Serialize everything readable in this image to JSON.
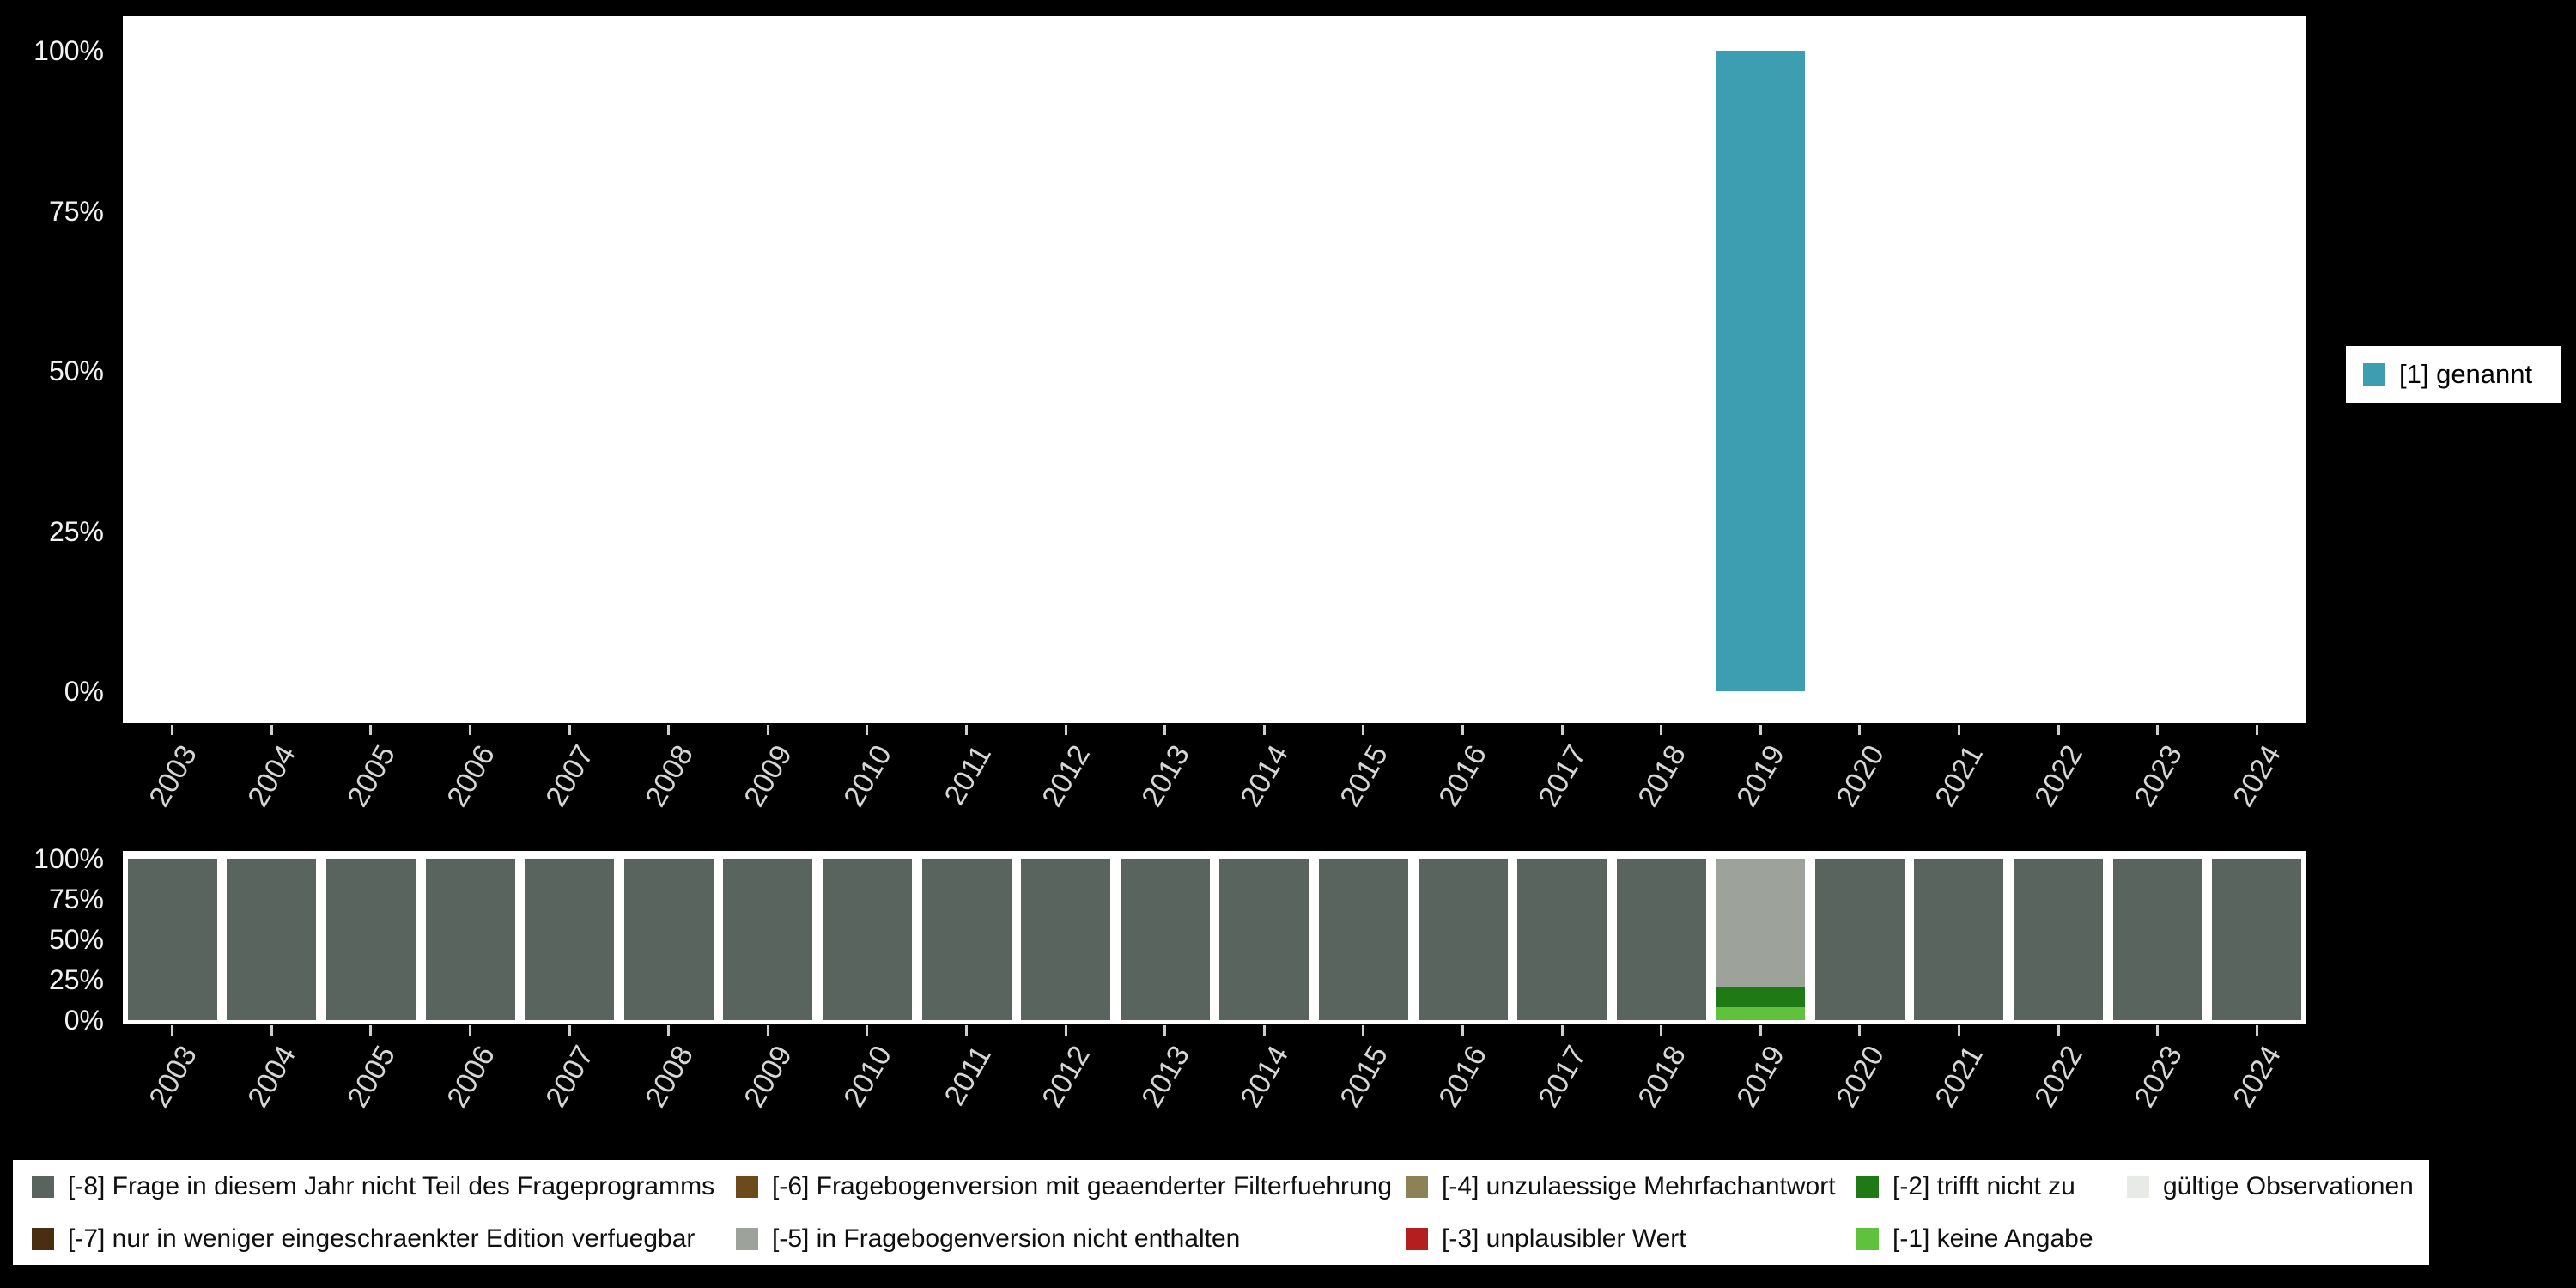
{
  "figure": {
    "background": "#000000"
  },
  "chart_data": [
    {
      "type": "bar",
      "title": "",
      "categories": [
        "2003",
        "2004",
        "2005",
        "2006",
        "2007",
        "2008",
        "2009",
        "2010",
        "2011",
        "2012",
        "2013",
        "2014",
        "2015",
        "2016",
        "2017",
        "2018",
        "2019",
        "2020",
        "2021",
        "2022",
        "2023",
        "2024"
      ],
      "yticks": [
        "0%",
        "25%",
        "50%",
        "75%",
        "100%"
      ],
      "ylim": [
        0,
        100
      ],
      "legend_position": "right-middle",
      "series": [
        {
          "name": "[1] genannt",
          "color": "#3D9EB2",
          "values": [
            0,
            0,
            0,
            0,
            0,
            0,
            0,
            0,
            0,
            0,
            0,
            0,
            0,
            0,
            0,
            0,
            100,
            0,
            0,
            0,
            0,
            0
          ]
        }
      ]
    },
    {
      "type": "bar",
      "stacked": true,
      "stack_order": "bottom-to-top",
      "categories": [
        "2003",
        "2004",
        "2005",
        "2006",
        "2007",
        "2008",
        "2009",
        "2010",
        "2011",
        "2012",
        "2013",
        "2014",
        "2015",
        "2016",
        "2017",
        "2018",
        "2019",
        "2020",
        "2021",
        "2022",
        "2023",
        "2024"
      ],
      "yticks": [
        "0%",
        "25%",
        "50%",
        "75%",
        "100%"
      ],
      "ylim": [
        0,
        100
      ],
      "series": [
        {
          "name": "[-1] keine Angabe",
          "color": "#5FC13C",
          "values": [
            0,
            0,
            0,
            0,
            0,
            0,
            0,
            0,
            0,
            0,
            0,
            0,
            0,
            0,
            0,
            0,
            8,
            0,
            0,
            0,
            0,
            0
          ]
        },
        {
          "name": "[-2] trifft nicht zu",
          "color": "#1F7A16",
          "values": [
            0,
            0,
            0,
            0,
            0,
            0,
            0,
            0,
            0,
            0,
            0,
            0,
            0,
            0,
            0,
            0,
            12,
            0,
            0,
            0,
            0,
            0
          ]
        },
        {
          "name": "[-5] in Fragebogenversion nicht enthalten",
          "color": "#9DA39A",
          "values": [
            0,
            0,
            0,
            0,
            0,
            0,
            0,
            0,
            0,
            0,
            0,
            0,
            0,
            0,
            0,
            0,
            80,
            0,
            0,
            0,
            0,
            0
          ]
        },
        {
          "name": "[-8] Frage in diesem Jahr nicht Teil des Frageprogramms",
          "color": "#5A645E",
          "values": [
            100,
            100,
            100,
            100,
            100,
            100,
            100,
            100,
            100,
            100,
            100,
            100,
            100,
            100,
            100,
            100,
            0,
            100,
            100,
            100,
            100,
            100
          ]
        }
      ]
    }
  ],
  "value_legend": {
    "label": "[1] genannt",
    "color": "#3D9EB2"
  },
  "missings_legend": {
    "items": [
      {
        "label": "[-8] Frage in diesem Jahr nicht Teil des Frageprogramms",
        "color": "#5A645E"
      },
      {
        "label": "[-7] nur in weniger eingeschraenkter Edition verfuegbar",
        "color": "#4A2E12"
      },
      {
        "label": "[-6] Fragebogenversion mit geaenderter Filterfuehrung",
        "color": "#6B4A1B"
      },
      {
        "label": "[-5] in Fragebogenversion nicht enthalten",
        "color": "#9DA39A"
      },
      {
        "label": "[-4] unzulaessige Mehrfachantwort",
        "color": "#8C8255"
      },
      {
        "label": "[-3] unplausibler Wert",
        "color": "#B41E1E"
      },
      {
        "label": "[-2] trifft nicht zu",
        "color": "#1F7A16"
      },
      {
        "label": "[-1] keine Angabe",
        "color": "#5FC13C"
      },
      {
        "label": "gültige Observationen",
        "color": "#E8EAE5"
      }
    ]
  }
}
